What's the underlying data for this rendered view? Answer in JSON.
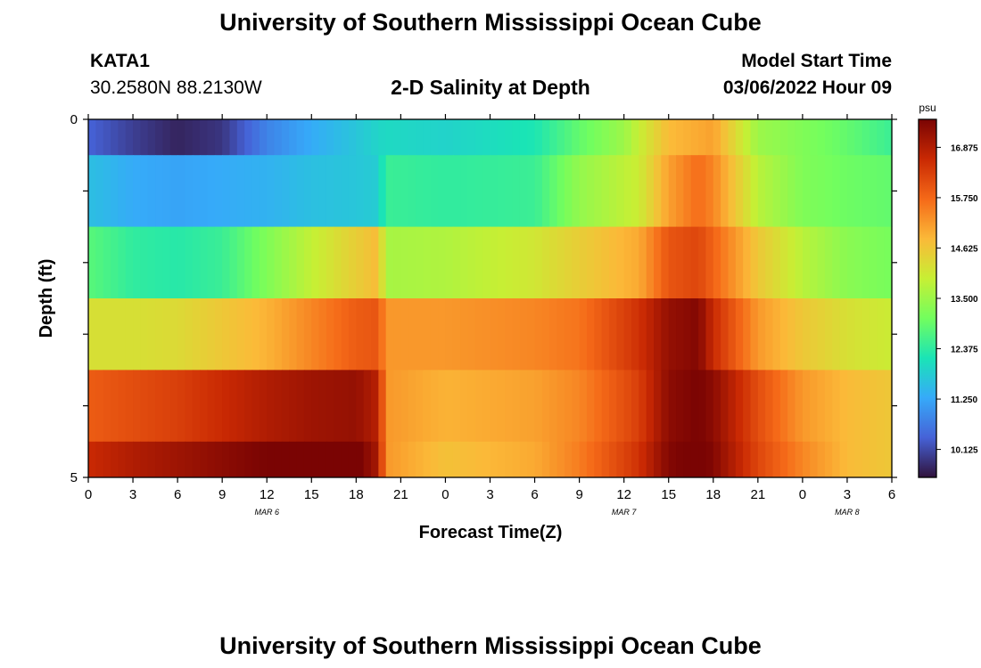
{
  "header": {
    "title": "University of Southern Mississippi Ocean Cube",
    "station_id": "KATA1",
    "station_coords": "30.2580N  88.2130W",
    "plot_title": "2-D Salinity at Depth",
    "model_start_label": "Model Start Time",
    "model_start_value": "03/06/2022 Hour 09"
  },
  "footer": {
    "title": "University of Southern Mississippi Ocean Cube"
  },
  "colors": {
    "colormap": [
      "#30123b",
      "#4662d7",
      "#36aaf9",
      "#1ae4b6",
      "#72fe5e",
      "#c7ef34",
      "#fbb938",
      "#f56918",
      "#c92903",
      "#7a0403"
    ]
  },
  "chart_data": {
    "type": "heatmap",
    "title": "2-D Salinity at Depth",
    "xlabel": "Forecast Time(Z)",
    "ylabel": "Depth (ft)",
    "x_tick_labels": [
      "0",
      "3",
      "6",
      "9",
      "12",
      "15",
      "18",
      "21",
      "0",
      "3",
      "6",
      "9",
      "12",
      "15",
      "18",
      "21",
      "0",
      "3",
      "6"
    ],
    "date_labels": [
      {
        "text": "MAR 6",
        "hour": 12
      },
      {
        "text": "MAR 7",
        "hour": 36
      },
      {
        "text": "MAR 8",
        "hour": 51
      }
    ],
    "x_range_hours": [
      0,
      54
    ],
    "y_range_ft": [
      0,
      5
    ],
    "y_tick_labels": [
      "0",
      "5"
    ],
    "rows_depth_ft": [
      0,
      1,
      2,
      3,
      4,
      5
    ],
    "colorbar": {
      "unit": "psu",
      "min": 9.5,
      "max": 17.5,
      "tick_labels": [
        "16.875",
        "15.750",
        "14.625",
        "13.500",
        "12.375",
        "11.250",
        "10.125"
      ]
    },
    "series": [
      {
        "name": "depth_0",
        "hours": [
          0,
          3,
          6,
          9,
          12,
          15,
          18,
          20,
          24,
          30,
          33,
          36,
          39,
          42,
          45,
          48,
          51,
          54
        ],
        "values": [
          10.4,
          10.0,
          9.7,
          9.9,
          10.8,
          11.3,
          11.7,
          12.0,
          11.9,
          12.2,
          12.9,
          13.5,
          14.8,
          15.1,
          13.5,
          13.2,
          12.9,
          12.5
        ]
      },
      {
        "name": "depth_1",
        "hours": [
          0,
          3,
          6,
          9,
          12,
          15,
          18,
          19.5,
          20,
          24,
          30,
          33,
          37,
          39,
          41,
          42,
          45,
          48,
          51,
          54
        ],
        "values": [
          11.6,
          11.3,
          11.2,
          11.3,
          11.4,
          11.6,
          11.7,
          11.8,
          12.5,
          12.4,
          12.5,
          13.4,
          14.0,
          15.1,
          15.7,
          15.4,
          13.8,
          13.2,
          13.0,
          12.9
        ]
      },
      {
        "name": "depth_2",
        "hours": [
          0,
          3,
          6,
          9,
          12,
          15,
          18,
          19.5,
          20,
          24,
          30,
          33,
          37,
          39,
          41,
          42,
          45,
          48,
          51,
          54
        ],
        "values": [
          12.8,
          12.4,
          12.3,
          12.5,
          13.2,
          13.9,
          14.5,
          14.8,
          13.6,
          13.7,
          14.1,
          14.5,
          15.0,
          16.0,
          16.2,
          15.8,
          14.6,
          13.8,
          13.3,
          13.1
        ]
      },
      {
        "name": "depth_3",
        "hours": [
          0,
          3,
          6,
          9,
          12,
          15,
          18,
          19.5,
          20,
          24,
          30,
          33,
          37,
          39,
          41,
          42,
          45,
          48,
          51,
          54
        ],
        "values": [
          14.2,
          14.2,
          14.3,
          14.6,
          14.9,
          15.4,
          15.9,
          16.0,
          15.2,
          15.2,
          15.4,
          15.6,
          16.5,
          17.2,
          17.4,
          16.6,
          15.2,
          14.6,
          14.2,
          14.0
        ]
      },
      {
        "name": "depth_4",
        "hours": [
          0,
          3,
          6,
          9,
          12,
          15,
          18,
          19.5,
          20,
          24,
          30,
          33,
          37,
          39,
          41,
          42,
          45,
          48,
          51,
          54
        ],
        "values": [
          15.9,
          16.1,
          16.3,
          16.6,
          16.9,
          17.1,
          17.2,
          16.8,
          15.2,
          14.9,
          15.1,
          15.4,
          16.3,
          17.3,
          17.5,
          17.3,
          16.1,
          15.2,
          14.8,
          14.6
        ]
      },
      {
        "name": "depth_5",
        "hours": [
          0,
          3,
          6,
          9,
          12,
          15,
          18,
          19.5,
          20,
          24,
          30,
          33,
          37,
          39,
          41,
          42,
          45,
          48,
          51,
          54
        ],
        "values": [
          16.6,
          16.9,
          17.1,
          17.3,
          17.5,
          17.6,
          17.6,
          17.0,
          15.2,
          14.7,
          15.0,
          15.5,
          16.5,
          17.4,
          17.6,
          17.4,
          16.2,
          15.4,
          14.8,
          14.6
        ]
      }
    ]
  }
}
